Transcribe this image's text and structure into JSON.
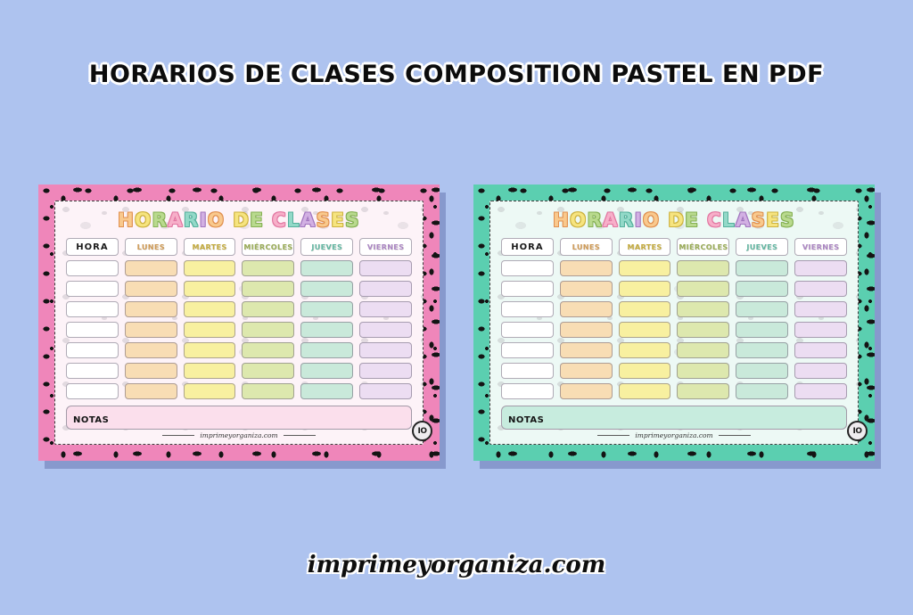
{
  "page": {
    "background_color": "#aec3ef",
    "heading": "HORARIOS DE CLASES COMPOSITION PASTEL EN PDF",
    "footer_site": "imprimeyorganiza.com"
  },
  "palette": {
    "letter_cycle": [
      {
        "fill": "#f9c98d",
        "outline": "#e09050"
      },
      {
        "fill": "#f6e47f",
        "outline": "#cdb23f"
      },
      {
        "fill": "#b9da8e",
        "outline": "#85b054"
      },
      {
        "fill": "#f7afc9",
        "outline": "#e277a2"
      },
      {
        "fill": "#93d9c8",
        "outline": "#55b09c"
      },
      {
        "fill": "#d2b0e3",
        "outline": "#a276bf"
      }
    ],
    "columns": [
      {
        "label_color": "#1c1c1c",
        "cell_bg": "#ffffff"
      },
      {
        "label_color": "#cf9a55",
        "cell_bg": "#f8ddb4"
      },
      {
        "label_color": "#c4ab3d",
        "cell_bg": "#f8f0a0"
      },
      {
        "label_color": "#9aad57",
        "cell_bg": "#dde8ae"
      },
      {
        "label_color": "#62b7a3",
        "cell_bg": "#c9e9da"
      },
      {
        "label_color": "#ab86c4",
        "cell_bg": "#ecddf2"
      }
    ]
  },
  "cards": [
    {
      "id": "pink",
      "border_color": "#ef86ba",
      "panel_bg": "#fdf3f8",
      "notas_bg": "#fbdfec",
      "title": "HORARIO DE CLASES",
      "headers": [
        "HORA",
        "LUNES",
        "MARTES",
        "MIÉRCOLES",
        "JUEVES",
        "VIERNES"
      ],
      "data_rows": 7,
      "notas_label": "NOTAS",
      "site_label": "imprimeyorganiza.com",
      "logo_text": "IO"
    },
    {
      "id": "teal",
      "border_color": "#5bcfb0",
      "panel_bg": "#edf9f5",
      "notas_bg": "#c7ecde",
      "title": "HORARIO DE CLASES",
      "headers": [
        "HORA",
        "LUNES",
        "MARTES",
        "MIÉRCOLES",
        "JUEVES",
        "VIERNES"
      ],
      "data_rows": 7,
      "notas_label": "NOTAS",
      "site_label": "imprimeyorganiza.com",
      "logo_text": "IO"
    }
  ]
}
